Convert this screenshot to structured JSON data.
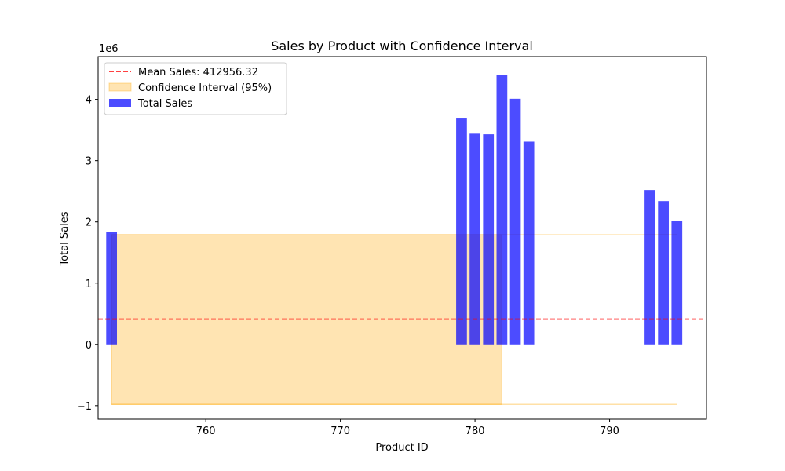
{
  "chart_data": {
    "type": "bar",
    "title": "Sales by Product with Confidence Interval",
    "xlabel": "Product ID",
    "ylabel": "Total Sales",
    "y_offset_label": "1e6",
    "xlim": [
      752.0,
      797.2
    ],
    "ylim": [
      -1.22,
      4.7
    ],
    "y_scale": 1000000,
    "x_ticks": [
      760,
      770,
      780,
      790
    ],
    "y_ticks": [
      -1,
      0,
      1,
      2,
      3,
      4
    ],
    "y_tick_labels": [
      "−1",
      "0",
      "1",
      "2",
      "3",
      "4"
    ],
    "bar_width": 0.8,
    "series": [
      {
        "name": "Total Sales",
        "color": "#0000ff",
        "x": [
          753,
          779,
          780,
          781,
          782,
          783,
          784,
          793,
          794,
          795
        ],
        "values": [
          1.84,
          3.7,
          3.44,
          3.43,
          4.4,
          4.01,
          3.31,
          2.52,
          2.34,
          2.01
        ]
      }
    ],
    "mean_line": {
      "name": "Mean Sales: 412956.32",
      "value": 0.413,
      "color": "#ff0000"
    },
    "confidence_interval": {
      "name": "Confidence Interval (95%)",
      "color": "#ffa500",
      "lower": -0.98,
      "upper": 1.79,
      "filled_x_range": [
        753.0,
        782.0
      ],
      "edge_x_range": [
        753.0,
        795.0
      ]
    },
    "legend_position": "upper left",
    "grid": false
  }
}
